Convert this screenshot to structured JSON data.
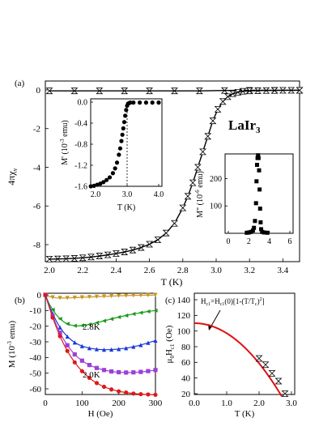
{
  "chart_data": [
    {
      "panel": "(a)",
      "type": "scatter",
      "ylabel": "4πχ",
      "ylabel_sub": "v",
      "xlabel": "T (K)",
      "annotation": "LaIr",
      "annotation_sub": "3",
      "xlim": [
        2.0,
        3.5
      ],
      "ylim": [
        -9,
        0.3
      ],
      "xticks": [
        "2.0",
        "2.2",
        "2.4",
        "2.6",
        "2.8",
        "3.0",
        "3.2",
        "3.4"
      ],
      "yticks": [
        "0",
        "-2",
        "-4",
        "-6",
        "-8"
      ],
      "series": [
        {
          "role": "FC",
          "marker": "bowtie",
          "x": [
            2.0,
            2.15,
            2.3,
            2.45,
            2.6,
            2.75,
            2.9,
            3.05,
            3.2,
            3.35,
            3.5
          ],
          "y": [
            -0.05,
            -0.05,
            -0.05,
            -0.05,
            -0.05,
            -0.05,
            -0.05,
            -0.03,
            -0.02,
            -0.02,
            -0.02
          ]
        },
        {
          "role": "ZFC",
          "marker": "bowtie",
          "x": [
            2.0,
            2.05,
            2.1,
            2.15,
            2.2,
            2.25,
            2.3,
            2.35,
            2.4,
            2.45,
            2.5,
            2.55,
            2.6,
            2.65,
            2.7,
            2.75,
            2.8,
            2.83,
            2.86,
            2.89,
            2.92,
            2.95,
            2.98,
            3.01,
            3.04,
            3.07,
            3.1,
            3.13,
            3.16,
            3.2,
            3.25,
            3.3,
            3.35,
            3.4,
            3.45,
            3.5
          ],
          "y": [
            -8.75,
            -8.74,
            -8.73,
            -8.71,
            -8.68,
            -8.64,
            -8.59,
            -8.53,
            -8.46,
            -8.38,
            -8.28,
            -8.15,
            -7.98,
            -7.75,
            -7.4,
            -6.9,
            -6.1,
            -5.5,
            -4.8,
            -4.0,
            -3.2,
            -2.4,
            -1.6,
            -1.0,
            -0.6,
            -0.35,
            -0.2,
            -0.12,
            -0.07,
            -0.05,
            -0.04,
            -0.03,
            -0.03,
            -0.02,
            -0.02,
            -0.02
          ]
        }
      ]
    },
    {
      "panel": "(a) inset 1",
      "type": "scatter",
      "ylabel": "M' (10",
      "ylabel_sup": "-3",
      "ylabel_tail": " emu)",
      "xlabel": "T (K)",
      "xlim": [
        1.8,
        4.1
      ],
      "ylim": [
        -1.65,
        0.05
      ],
      "xticks": [
        "2.0",
        "3.0",
        "4.0"
      ],
      "yticks": [
        "0.0",
        "-0.4",
        "-0.8",
        "-1.2",
        "-1.6"
      ],
      "marker_line": 3.0,
      "x": [
        1.85,
        1.95,
        2.05,
        2.15,
        2.25,
        2.35,
        2.45,
        2.55,
        2.62,
        2.68,
        2.74,
        2.78,
        2.82,
        2.85,
        2.88,
        2.91,
        2.94,
        2.97,
        3.0,
        3.03,
        3.06,
        3.1,
        3.2,
        3.4,
        3.6,
        3.8,
        4.0
      ],
      "y": [
        -1.6,
        -1.59,
        -1.57,
        -1.55,
        -1.52,
        -1.48,
        -1.43,
        -1.35,
        -1.26,
        -1.15,
        -1.0,
        -0.88,
        -0.74,
        -0.62,
        -0.5,
        -0.38,
        -0.26,
        -0.15,
        -0.07,
        -0.03,
        -0.02,
        -0.01,
        -0.01,
        -0.01,
        -0.01,
        -0.01,
        -0.01
      ]
    },
    {
      "panel": "(a) inset 2",
      "type": "scatter",
      "ylabel": "M\" (10",
      "ylabel_sup": "-6",
      "ylabel_tail": " emu)",
      "xlim": [
        0,
        6
      ],
      "ylim": [
        0,
        290
      ],
      "xticks": [
        "0",
        "2",
        "4",
        "6"
      ],
      "yticks": [
        "100",
        "200"
      ],
      "x": [
        1.8,
        2.0,
        2.2,
        2.4,
        2.5,
        2.6,
        2.7,
        2.75,
        2.8,
        2.85,
        2.9,
        2.95,
        3.0,
        3.05,
        3.1,
        3.15,
        3.2,
        3.3,
        3.5,
        3.8
      ],
      "y": [
        2,
        3,
        5,
        10,
        20,
        45,
        110,
        190,
        250,
        275,
        285,
        275,
        230,
        160,
        90,
        40,
        15,
        5,
        3,
        2
      ]
    },
    {
      "panel": "(b)",
      "type": "line",
      "ylabel": "M (10",
      "ylabel_sup": "-3",
      "ylabel_tail": " emu)",
      "xlabel": "H (Oe)",
      "xlim": [
        0,
        300
      ],
      "ylim": [
        -65,
        2
      ],
      "xticks": [
        "0",
        "100",
        "200",
        "300"
      ],
      "yticks": [
        "0",
        "-10",
        "-20",
        "-30",
        "-40",
        "-50",
        "-60"
      ],
      "labels": [
        "2.8K",
        "2.0K"
      ],
      "series": [
        {
          "temp": "2.8K",
          "color": "#c8961e",
          "marker": "tri-down",
          "x": [
            0,
            10,
            20,
            30,
            40,
            50,
            60,
            70,
            80,
            90,
            100,
            110,
            120,
            130,
            140,
            150,
            160,
            170,
            180,
            190,
            200,
            210,
            220,
            230,
            240,
            250,
            260,
            270,
            280,
            290,
            300
          ],
          "y": [
            0,
            -1.0,
            -1.6,
            -1.9,
            -2.0,
            -2.0,
            -2.0,
            -1.9,
            -1.8,
            -1.7,
            -1.6,
            -1.5,
            -1.4,
            -1.3,
            -1.2,
            -1.1,
            -1.0,
            -0.9,
            -0.8,
            -0.7,
            -0.6,
            -0.5,
            -0.5,
            -0.4,
            -0.4,
            -0.3,
            -0.3,
            -0.2,
            -0.2,
            -0.2,
            -0.1
          ]
        },
        {
          "temp": "",
          "color": "#1a9a1a",
          "marker": "tri-left",
          "x": [
            0,
            10,
            20,
            30,
            40,
            50,
            60,
            70,
            80,
            90,
            100,
            110,
            120,
            130,
            140,
            150,
            160,
            170,
            180,
            190,
            200,
            210,
            220,
            230,
            240,
            250,
            260,
            270,
            280,
            290,
            300
          ],
          "y": [
            0,
            -5.5,
            -9.5,
            -12.8,
            -15.3,
            -17.2,
            -18.5,
            -19.3,
            -19.7,
            -19.8,
            -19.6,
            -19.3,
            -18.9,
            -18.4,
            -17.8,
            -17.2,
            -16.6,
            -16.0,
            -15.4,
            -14.8,
            -14.2,
            -13.7,
            -13.2,
            -12.7,
            -12.2,
            -11.8,
            -11.4,
            -11.0,
            -10.6,
            -10.3,
            -10.0
          ]
        },
        {
          "temp": "",
          "color": "#1a3ad8",
          "marker": "tri-up",
          "x": [
            0,
            10,
            20,
            30,
            40,
            50,
            60,
            70,
            80,
            90,
            100,
            110,
            120,
            130,
            140,
            150,
            160,
            170,
            180,
            190,
            200,
            210,
            220,
            230,
            240,
            250,
            260,
            270,
            280,
            290,
            300
          ],
          "y": [
            0,
            -6.5,
            -12.0,
            -16.8,
            -20.8,
            -24.0,
            -26.6,
            -28.7,
            -30.4,
            -31.7,
            -32.7,
            -33.4,
            -34.0,
            -34.4,
            -34.7,
            -34.9,
            -35.0,
            -35.0,
            -34.9,
            -34.8,
            -34.6,
            -34.3,
            -34.0,
            -33.6,
            -33.1,
            -32.6,
            -32.0,
            -31.3,
            -30.6,
            -29.9,
            -29.2
          ]
        },
        {
          "temp": "",
          "color": "#9a40d8",
          "marker": "square",
          "x": [
            0,
            10,
            20,
            30,
            40,
            50,
            60,
            70,
            80,
            90,
            100,
            110,
            120,
            130,
            140,
            150,
            160,
            170,
            180,
            190,
            200,
            210,
            220,
            230,
            240,
            250,
            260,
            270,
            280,
            290,
            300
          ],
          "y": [
            0,
            -7.0,
            -13.5,
            -19.2,
            -24.2,
            -28.5,
            -32.2,
            -35.3,
            -38.0,
            -40.2,
            -42.0,
            -43.5,
            -44.8,
            -45.8,
            -46.7,
            -47.4,
            -48.0,
            -48.5,
            -48.9,
            -49.2,
            -49.4,
            -49.5,
            -49.6,
            -49.6,
            -49.5,
            -49.4,
            -49.2,
            -49.0,
            -48.7,
            -48.4,
            -48.0
          ]
        },
        {
          "temp": "2.0K",
          "color": "#e01818",
          "marker": "circle",
          "x": [
            0,
            10,
            20,
            30,
            40,
            50,
            60,
            70,
            80,
            90,
            100,
            110,
            120,
            130,
            140,
            150,
            160,
            170,
            180,
            190,
            200,
            210,
            220,
            230,
            240,
            250,
            260,
            270,
            280,
            290,
            300
          ],
          "y": [
            0,
            -7.5,
            -14.5,
            -20.8,
            -26.4,
            -31.4,
            -35.8,
            -39.7,
            -43.1,
            -46.1,
            -48.7,
            -51.0,
            -53.0,
            -54.8,
            -56.3,
            -57.6,
            -58.7,
            -59.6,
            -60.4,
            -61.0,
            -61.6,
            -62.0,
            -62.4,
            -62.7,
            -63.0,
            -63.2,
            -63.4,
            -63.5,
            -63.6,
            -63.7,
            -63.8
          ]
        }
      ]
    },
    {
      "panel": "(c)",
      "type": "scatter",
      "ylabel": "μ",
      "ylabel_sub1": "0",
      "ylabel_mid": "H",
      "ylabel_sub2": "c1",
      "ylabel_tail": " (Oe)",
      "xlabel": "T (K)",
      "formula": "H",
      "formula_sub1": "c1",
      "formula_mid": "=H",
      "formula_sub2": "c1",
      "formula_mid2": "(0)[1-(T/T",
      "formula_sub3": "c",
      "formula_mid3": ")",
      "formula_sup": "2",
      "formula_tail": "]",
      "xlim": [
        0,
        3.0
      ],
      "ylim": [
        15,
        145
      ],
      "xticks": [
        "0.0",
        "1.0",
        "2.0",
        "3.0"
      ],
      "yticks": [
        "20",
        "40",
        "60",
        "80",
        "100",
        "120",
        "140"
      ],
      "fit": {
        "Hc1_0": 110,
        "Tc": 2.93,
        "color": "#e01010"
      },
      "x": [
        2.0,
        2.2,
        2.4,
        2.6,
        2.8
      ],
      "y": [
        65,
        57,
        46,
        36,
        20
      ]
    }
  ]
}
